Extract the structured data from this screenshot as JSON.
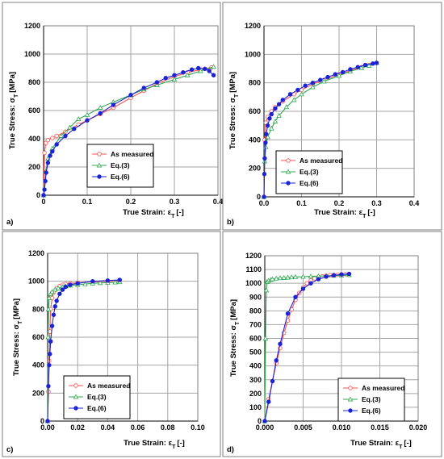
{
  "figure": {
    "colors": {
      "as_measured": "#ff4d4d",
      "eq3": "#2fa84f",
      "eq6": "#1a23d6"
    }
  },
  "chart_data": [
    {
      "type": "line",
      "panel_label": "a)",
      "xlabel": "True Strain: εT [-]",
      "ylabel": "True Stress: σT [MPa]",
      "xlim": [
        0,
        0.4
      ],
      "ylim": [
        0,
        1200
      ],
      "x_ticks": [
        "0",
        "0.1",
        "0.2",
        "0.3",
        "0.4"
      ],
      "y_ticks": [
        "0",
        "200",
        "400",
        "600",
        "800",
        "1000",
        "1200"
      ],
      "grid": true,
      "legend_position": "lower-center",
      "series": [
        {
          "name": "As measured",
          "marker": "circle-open",
          "color": "#ff4d4d",
          "x": [
            0,
            0.002,
            0.005,
            0.01,
            0.02,
            0.03,
            0.05,
            0.08,
            0.1,
            0.13,
            0.16,
            0.2,
            0.23,
            0.26,
            0.3,
            0.33,
            0.36,
            0.385
          ],
          "y": [
            0,
            300,
            370,
            390,
            405,
            420,
            450,
            500,
            530,
            575,
            620,
            690,
            740,
            790,
            840,
            870,
            890,
            905
          ]
        },
        {
          "name": "Eq.(3)",
          "marker": "triangle-open",
          "color": "#2fa84f",
          "x": [
            0,
            0.005,
            0.01,
            0.02,
            0.04,
            0.06,
            0.08,
            0.1,
            0.13,
            0.16,
            0.2,
            0.23,
            0.26,
            0.3,
            0.33,
            0.36,
            0.39
          ],
          "y": [
            0,
            170,
            260,
            330,
            420,
            480,
            540,
            570,
            620,
            660,
            710,
            750,
            780,
            820,
            850,
            880,
            910
          ]
        },
        {
          "name": "Eq.(6)",
          "marker": "circle-filled",
          "color": "#1a23d6",
          "x": [
            0,
            0.002,
            0.004,
            0.006,
            0.01,
            0.015,
            0.02,
            0.03,
            0.05,
            0.07,
            0.1,
            0.13,
            0.16,
            0.2,
            0.23,
            0.26,
            0.28,
            0.3,
            0.32,
            0.34,
            0.355,
            0.37,
            0.38,
            0.39
          ],
          "y": [
            0,
            40,
            100,
            160,
            230,
            280,
            310,
            360,
            420,
            470,
            530,
            580,
            640,
            710,
            760,
            800,
            830,
            850,
            870,
            890,
            900,
            895,
            880,
            850
          ]
        }
      ]
    },
    {
      "type": "line",
      "panel_label": "b)",
      "xlabel": "True Strain: εT [-]",
      "ylabel": "True Stress: σT [MPa]",
      "xlim": [
        0,
        0.4
      ],
      "ylim": [
        0,
        1200
      ],
      "x_ticks": [
        "0.0",
        "0.1",
        "0.2",
        "0.3",
        "0.4"
      ],
      "y_ticks": [
        "0",
        "200",
        "400",
        "600",
        "800",
        "1000",
        "1200"
      ],
      "grid": true,
      "legend_position": "lower-left",
      "series": [
        {
          "name": "As measured",
          "marker": "circle-open",
          "color": "#ff4d4d",
          "x": [
            0,
            0.002,
            0.005,
            0.01,
            0.02,
            0.03,
            0.05,
            0.08,
            0.1,
            0.13,
            0.16,
            0.2,
            0.23,
            0.26,
            0.28,
            0.3
          ],
          "y": [
            0,
            400,
            520,
            560,
            600,
            630,
            670,
            720,
            750,
            790,
            820,
            860,
            885,
            910,
            925,
            940
          ]
        },
        {
          "name": "Eq.(3)",
          "marker": "triangle-open",
          "color": "#2fa84f",
          "x": [
            0,
            0.002,
            0.005,
            0.01,
            0.02,
            0.03,
            0.04,
            0.06,
            0.08,
            0.1,
            0.13,
            0.16,
            0.2,
            0.23,
            0.26,
            0.28,
            0.3
          ],
          "y": [
            0,
            250,
            350,
            420,
            480,
            530,
            570,
            630,
            680,
            720,
            770,
            810,
            850,
            880,
            905,
            920,
            940
          ]
        },
        {
          "name": "Eq.(6)",
          "marker": "circle-filled",
          "color": "#1a23d6",
          "x": [
            0,
            0.001,
            0.002,
            0.004,
            0.006,
            0.01,
            0.015,
            0.02,
            0.03,
            0.04,
            0.05,
            0.07,
            0.09,
            0.11,
            0.13,
            0.15,
            0.17,
            0.19,
            0.21,
            0.23,
            0.25,
            0.27,
            0.29,
            0.3
          ],
          "y": [
            0,
            160,
            270,
            380,
            440,
            500,
            550,
            580,
            620,
            650,
            680,
            720,
            750,
            780,
            800,
            820,
            840,
            860,
            875,
            895,
            910,
            925,
            935,
            940
          ]
        }
      ]
    },
    {
      "type": "line",
      "panel_label": "c)",
      "xlabel": "True Strain: εT [-]",
      "ylabel": "True Stress: σT [MPa]",
      "xlim": [
        0,
        0.1
      ],
      "ylim": [
        0,
        1200
      ],
      "x_ticks": [
        "0.00",
        "0.02",
        "0.04",
        "0.06",
        "0.08",
        "0.10"
      ],
      "y_ticks": [
        "0",
        "200",
        "400",
        "600",
        "800",
        "1000",
        "1200"
      ],
      "grid": true,
      "legend_position": "lower-left",
      "series": [
        {
          "name": "As measured",
          "marker": "circle-open",
          "color": "#ff4d4d",
          "x": [
            0,
            0.0005,
            0.001,
            0.0015,
            0.002,
            0.003,
            0.004,
            0.006,
            0.008,
            0.01,
            0.012,
            0.015,
            0.02,
            0.03,
            0.04,
            0.048
          ],
          "y": [
            0,
            210,
            430,
            640,
            800,
            880,
            920,
            950,
            965,
            975,
            980,
            985,
            990,
            995,
            1000,
            1005
          ]
        },
        {
          "name": "Eq.(3)",
          "marker": "triangle-open",
          "color": "#2fa84f",
          "x": [
            0,
            0.0003,
            0.0006,
            0.001,
            0.002,
            0.003,
            0.005,
            0.007,
            0.01,
            0.012,
            0.015,
            0.02,
            0.025,
            0.03,
            0.035,
            0.04,
            0.045,
            0.048
          ],
          "y": [
            0,
            600,
            800,
            880,
            910,
            925,
            940,
            950,
            960,
            965,
            970,
            975,
            980,
            985,
            988,
            990,
            992,
            994
          ]
        },
        {
          "name": "Eq.(6)",
          "marker": "circle-filled",
          "color": "#1a23d6",
          "x": [
            0,
            0.0005,
            0.001,
            0.0015,
            0.002,
            0.003,
            0.004,
            0.005,
            0.006,
            0.008,
            0.01,
            0.012,
            0.015,
            0.02,
            0.03,
            0.04,
            0.048
          ],
          "y": [
            0,
            250,
            400,
            480,
            570,
            680,
            760,
            820,
            860,
            910,
            940,
            960,
            975,
            985,
            1000,
            1005,
            1010
          ]
        }
      ]
    },
    {
      "type": "line",
      "panel_label": "d)",
      "xlabel": "True Strain: εT [-]",
      "ylabel": "True Stress: σT [MPa]",
      "xlim": [
        0,
        0.02
      ],
      "ylim": [
        0,
        1200
      ],
      "x_ticks": [
        "0.000",
        "0.005",
        "0.010",
        "0.015",
        "0.020"
      ],
      "y_ticks": [
        "0",
        "100",
        "200",
        "300",
        "400",
        "500",
        "600",
        "700",
        "800",
        "900",
        "1000",
        "1100",
        "1200"
      ],
      "grid": true,
      "legend_position": "lower-right",
      "series": [
        {
          "name": "As measured",
          "marker": "circle-open",
          "color": "#ff4d4d",
          "x": [
            0,
            0.0005,
            0.001,
            0.0015,
            0.002,
            0.0025,
            0.003,
            0.0035,
            0.004,
            0.0045,
            0.005,
            0.0055,
            0.006,
            0.0065,
            0.007,
            0.0075,
            0.008,
            0.0085,
            0.009,
            0.0095,
            0.01,
            0.0105,
            0.011
          ],
          "y": [
            0,
            160,
            290,
            420,
            530,
            640,
            730,
            810,
            880,
            930,
            970,
            1000,
            1020,
            1035,
            1045,
            1050,
            1055,
            1058,
            1060,
            1062,
            1064,
            1066,
            1068
          ]
        },
        {
          "name": "Eq.(3)",
          "marker": "triangle-open",
          "color": "#2fa84f",
          "x": [
            0,
            0.0001,
            0.0002,
            0.0003,
            0.0005,
            0.0008,
            0.001,
            0.0015,
            0.002,
            0.0025,
            0.003,
            0.0035,
            0.004,
            0.005,
            0.006,
            0.007,
            0.008,
            0.009,
            0.01,
            0.011
          ],
          "y": [
            0,
            600,
            950,
            1010,
            1020,
            1025,
            1030,
            1035,
            1038,
            1040,
            1042,
            1044,
            1046,
            1048,
            1050,
            1052,
            1054,
            1056,
            1058,
            1060
          ]
        },
        {
          "name": "Eq.(6)",
          "marker": "circle-filled",
          "color": "#1a23d6",
          "x": [
            0,
            0.0005,
            0.001,
            0.0015,
            0.002,
            0.003,
            0.004,
            0.005,
            0.006,
            0.007,
            0.008,
            0.009,
            0.01,
            0.011
          ],
          "y": [
            0,
            140,
            290,
            440,
            560,
            780,
            900,
            960,
            1000,
            1030,
            1048,
            1058,
            1064,
            1068
          ]
        }
      ]
    }
  ]
}
